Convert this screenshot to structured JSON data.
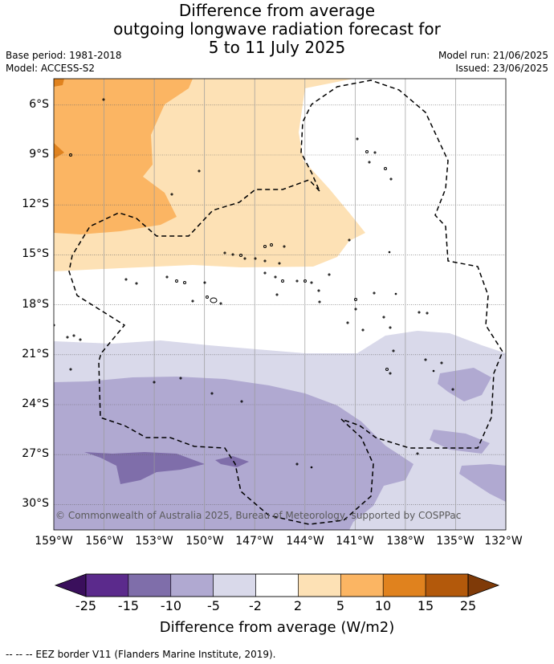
{
  "title": {
    "line1": "Difference from average",
    "line2": "outgoing longwave radiation forecast for",
    "line3": "5 to 11 July 2025"
  },
  "meta": {
    "base_period": "Base period: 1981-2018",
    "model": "Model: ACCESS-S2",
    "model_run": "Model run: 21/06/2025",
    "issued": "Issued: 23/06/2025"
  },
  "axes": {
    "lat_labels": [
      "6°S",
      "9°S",
      "12°S",
      "15°S",
      "18°S",
      "21°S",
      "24°S",
      "27°S",
      "30°S"
    ],
    "lon_labels": [
      "159°W",
      "156°W",
      "153°W",
      "150°W",
      "147°W",
      "144°W",
      "141°W",
      "138°W",
      "135°W",
      "132°W"
    ]
  },
  "copyright": "© Commonwealth of Australia 2025, Bureau of Meteorology, supported by COSPPac",
  "colorbar": {
    "ticks": [
      "-25",
      "-15",
      "-10",
      "-5",
      "-2",
      "2",
      "5",
      "10",
      "15",
      "25"
    ],
    "colors": [
      "#5b2a8c",
      "#7f6eaa",
      "#b0a9d1",
      "#d9d9ea",
      "#ffffff",
      "#fde1b5",
      "#fbb563",
      "#e0821e",
      "#b3590b"
    ],
    "under_color": "#3a0f5c",
    "over_color": "#7f3a08",
    "label": "Difference from average (W/m2)"
  },
  "footer": "--  --  -- EEZ border V11 (Flanders Marine Institute, 2019)."
}
